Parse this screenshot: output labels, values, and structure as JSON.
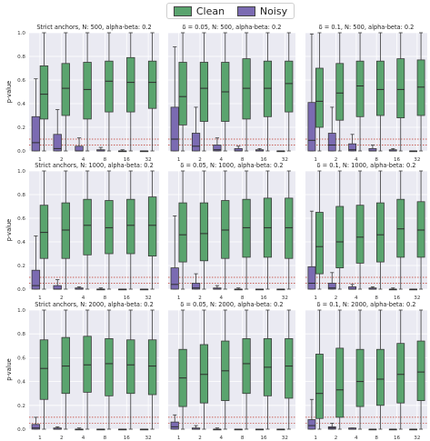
{
  "legend": {
    "clean_label": "Clean",
    "noisy_label": "Noisy"
  },
  "colors": {
    "clean": "#5aa46e",
    "noisy": "#7b6bb2",
    "background": "#eaeaf2",
    "threshold": "#c0392b",
    "median": "#2d2d2d"
  },
  "chart_data": [
    {
      "type": "box",
      "title": "Strict anchors, N: 500, alpha-beta: 0.2",
      "ylabel": "p-value",
      "categories": [
        "1",
        "2",
        "4",
        "8",
        "16",
        "32"
      ],
      "ylim": [
        0,
        1
      ],
      "threshold_lines": [
        0.05,
        0.1
      ],
      "grid": true,
      "series": [
        {
          "name": "Clean",
          "boxes": [
            [
              0.0,
              0.27,
              0.48,
              0.72,
              1.0
            ],
            [
              0.0,
              0.3,
              0.53,
              0.74,
              1.0
            ],
            [
              0.0,
              0.27,
              0.52,
              0.75,
              1.0
            ],
            [
              0.0,
              0.33,
              0.59,
              0.76,
              1.0
            ],
            [
              0.0,
              0.33,
              0.58,
              0.79,
              1.0
            ],
            [
              0.0,
              0.36,
              0.58,
              0.76,
              1.0
            ]
          ]
        },
        {
          "name": "Noisy",
          "boxes": [
            [
              0.0,
              0.0,
              0.07,
              0.29,
              0.61
            ],
            [
              0.0,
              0.0,
              0.02,
              0.14,
              0.35
            ],
            [
              0.0,
              0.0,
              0.0,
              0.04,
              0.11
            ],
            [
              0.0,
              0.0,
              0.0,
              0.01,
              0.03
            ],
            [
              0.0,
              0.0,
              0.0,
              0.0,
              0.01
            ],
            [
              0.0,
              0.0,
              0.0,
              0.0,
              0.0
            ]
          ]
        }
      ]
    },
    {
      "type": "box",
      "title": "δ = 0.05, N: 500, alpha-beta: 0.2",
      "ylabel": "",
      "categories": [
        "1",
        "2",
        "4",
        "8",
        "16",
        "32"
      ],
      "ylim": [
        0,
        1
      ],
      "threshold_lines": [
        0.05,
        0.1
      ],
      "grid": true,
      "series": [
        {
          "name": "Clean",
          "boxes": [
            [
              0.0,
              0.22,
              0.46,
              0.75,
              1.0
            ],
            [
              0.0,
              0.25,
              0.53,
              0.75,
              1.0
            ],
            [
              0.0,
              0.25,
              0.5,
              0.75,
              1.0
            ],
            [
              0.0,
              0.27,
              0.53,
              0.78,
              1.0
            ],
            [
              0.0,
              0.29,
              0.53,
              0.76,
              1.0
            ],
            [
              0.0,
              0.33,
              0.57,
              0.76,
              1.0
            ]
          ]
        },
        {
          "name": "Noisy",
          "boxes": [
            [
              0.0,
              0.0,
              0.1,
              0.37,
              0.88
            ],
            [
              0.0,
              0.0,
              0.04,
              0.15,
              0.37
            ],
            [
              0.0,
              0.0,
              0.01,
              0.05,
              0.11
            ],
            [
              0.0,
              0.0,
              0.0,
              0.02,
              0.04
            ],
            [
              0.0,
              0.0,
              0.0,
              0.01,
              0.02
            ],
            [
              0.0,
              0.0,
              0.0,
              0.0,
              0.0
            ]
          ]
        }
      ]
    },
    {
      "type": "box",
      "title": "δ = 0.1, N: 500, alpha-beta: 0.2",
      "ylabel": "",
      "categories": [
        "1",
        "2",
        "4",
        "8",
        "16",
        "32"
      ],
      "ylim": [
        0,
        1
      ],
      "threshold_lines": [
        0.05,
        0.1
      ],
      "grid": true,
      "series": [
        {
          "name": "Clean",
          "boxes": [
            [
              0.0,
              0.2,
              0.42,
              0.7,
              1.0
            ],
            [
              0.0,
              0.26,
              0.49,
              0.74,
              1.0
            ],
            [
              0.0,
              0.29,
              0.55,
              0.76,
              1.0
            ],
            [
              0.0,
              0.3,
              0.52,
              0.76,
              1.0
            ],
            [
              0.0,
              0.28,
              0.52,
              0.78,
              1.0
            ],
            [
              0.0,
              0.3,
              0.54,
              0.77,
              1.0
            ]
          ]
        },
        {
          "name": "Noisy",
          "boxes": [
            [
              0.0,
              0.0,
              0.09,
              0.41,
              0.99
            ],
            [
              0.0,
              0.0,
              0.05,
              0.15,
              0.37
            ],
            [
              0.0,
              0.0,
              0.01,
              0.06,
              0.14
            ],
            [
              0.0,
              0.0,
              0.0,
              0.02,
              0.05
            ],
            [
              0.0,
              0.0,
              0.0,
              0.01,
              0.02
            ],
            [
              0.0,
              0.0,
              0.0,
              0.0,
              0.0
            ]
          ]
        }
      ]
    },
    {
      "type": "box",
      "title": "Strict anchors, N: 1000, alpha-beta: 0.2",
      "ylabel": "p-value",
      "categories": [
        "1",
        "2",
        "4",
        "8",
        "16",
        "32"
      ],
      "ylim": [
        0,
        1
      ],
      "threshold_lines": [
        0.05,
        0.1
      ],
      "grid": true,
      "series": [
        {
          "name": "Clean",
          "boxes": [
            [
              0.0,
              0.26,
              0.48,
              0.71,
              1.0
            ],
            [
              0.0,
              0.26,
              0.5,
              0.73,
              1.0
            ],
            [
              0.0,
              0.29,
              0.54,
              0.76,
              1.0
            ],
            [
              0.0,
              0.3,
              0.52,
              0.75,
              1.0
            ],
            [
              0.0,
              0.3,
              0.54,
              0.76,
              1.0
            ],
            [
              0.0,
              0.28,
              0.54,
              0.78,
              1.0
            ]
          ]
        },
        {
          "name": "Noisy",
          "boxes": [
            [
              0.0,
              0.0,
              0.03,
              0.16,
              0.45
            ],
            [
              0.0,
              0.0,
              0.0,
              0.03,
              0.08
            ],
            [
              0.0,
              0.0,
              0.0,
              0.01,
              0.02
            ],
            [
              0.0,
              0.0,
              0.0,
              0.0,
              0.01
            ],
            [
              0.0,
              0.0,
              0.0,
              0.0,
              0.0
            ],
            [
              0.0,
              0.0,
              0.0,
              0.0,
              0.0
            ]
          ]
        }
      ]
    },
    {
      "type": "box",
      "title": "δ = 0.05, N: 1000, alpha-beta: 0.2",
      "ylabel": "",
      "categories": [
        "1",
        "2",
        "4",
        "8",
        "16",
        "32"
      ],
      "ylim": [
        0,
        1
      ],
      "threshold_lines": [
        0.05,
        0.1
      ],
      "grid": true,
      "series": [
        {
          "name": "Clean",
          "boxes": [
            [
              0.0,
              0.23,
              0.46,
              0.73,
              1.0
            ],
            [
              0.0,
              0.24,
              0.47,
              0.73,
              1.0
            ],
            [
              0.0,
              0.26,
              0.5,
              0.75,
              1.0
            ],
            [
              0.0,
              0.27,
              0.52,
              0.76,
              1.0
            ],
            [
              0.0,
              0.27,
              0.52,
              0.77,
              1.0
            ],
            [
              0.0,
              0.26,
              0.52,
              0.77,
              1.0
            ]
          ]
        },
        {
          "name": "Noisy",
          "boxes": [
            [
              0.0,
              0.0,
              0.04,
              0.18,
              0.62
            ],
            [
              0.0,
              0.0,
              0.01,
              0.05,
              0.13
            ],
            [
              0.0,
              0.0,
              0.0,
              0.01,
              0.03
            ],
            [
              0.0,
              0.0,
              0.0,
              0.0,
              0.01
            ],
            [
              0.0,
              0.0,
              0.0,
              0.0,
              0.0
            ],
            [
              0.0,
              0.0,
              0.0,
              0.0,
              0.0
            ]
          ]
        }
      ]
    },
    {
      "type": "box",
      "title": "δ = 0.1, N: 1000, alpha-beta: 0.2",
      "ylabel": "",
      "categories": [
        "1",
        "2",
        "4",
        "8",
        "16",
        "32"
      ],
      "ylim": [
        0,
        1
      ],
      "threshold_lines": [
        0.05,
        0.1
      ],
      "grid": true,
      "series": [
        {
          "name": "Clean",
          "boxes": [
            [
              0.0,
              0.13,
              0.36,
              0.65,
              1.0
            ],
            [
              0.0,
              0.18,
              0.4,
              0.7,
              1.0
            ],
            [
              0.0,
              0.22,
              0.44,
              0.71,
              1.0
            ],
            [
              0.0,
              0.23,
              0.46,
              0.73,
              1.0
            ],
            [
              0.0,
              0.27,
              0.51,
              0.76,
              1.0
            ],
            [
              0.0,
              0.27,
              0.5,
              0.74,
              1.0
            ]
          ]
        },
        {
          "name": "Noisy",
          "boxes": [
            [
              0.0,
              0.0,
              0.05,
              0.19,
              0.66
            ],
            [
              0.0,
              0.0,
              0.01,
              0.05,
              0.14
            ],
            [
              0.0,
              0.0,
              0.0,
              0.02,
              0.04
            ],
            [
              0.0,
              0.0,
              0.0,
              0.01,
              0.02
            ],
            [
              0.0,
              0.0,
              0.0,
              0.0,
              0.01
            ],
            [
              0.0,
              0.0,
              0.0,
              0.0,
              0.0
            ]
          ]
        }
      ]
    },
    {
      "type": "box",
      "title": "Strict anchors, N: 2000, alpha-beta: 0.2",
      "ylabel": "p-value",
      "categories": [
        "1",
        "2",
        "4",
        "8",
        "16",
        "32"
      ],
      "ylim": [
        0,
        1
      ],
      "threshold_lines": [
        0.05,
        0.1
      ],
      "grid": true,
      "series": [
        {
          "name": "Clean",
          "boxes": [
            [
              0.0,
              0.25,
              0.51,
              0.75,
              1.0
            ],
            [
              0.0,
              0.3,
              0.53,
              0.77,
              1.0
            ],
            [
              0.0,
              0.31,
              0.54,
              0.78,
              1.0
            ],
            [
              0.0,
              0.28,
              0.55,
              0.76,
              1.0
            ],
            [
              0.0,
              0.3,
              0.54,
              0.75,
              1.0
            ],
            [
              0.0,
              0.29,
              0.53,
              0.75,
              1.0
            ]
          ]
        },
        {
          "name": "Noisy",
          "boxes": [
            [
              0.0,
              0.0,
              0.01,
              0.04,
              0.1
            ],
            [
              0.0,
              0.0,
              0.0,
              0.01,
              0.02
            ],
            [
              0.0,
              0.0,
              0.0,
              0.0,
              0.01
            ],
            [
              0.0,
              0.0,
              0.0,
              0.0,
              0.0
            ],
            [
              0.0,
              0.0,
              0.0,
              0.0,
              0.0
            ],
            [
              0.0,
              0.0,
              0.0,
              0.0,
              0.0
            ]
          ]
        }
      ]
    },
    {
      "type": "box",
      "title": "δ = 0.05, N: 2000, alpha-beta: 0.2",
      "ylabel": "",
      "categories": [
        "1",
        "2",
        "4",
        "8",
        "16",
        "32"
      ],
      "ylim": [
        0,
        1
      ],
      "threshold_lines": [
        0.05,
        0.1
      ],
      "grid": true,
      "series": [
        {
          "name": "Clean",
          "boxes": [
            [
              0.0,
              0.19,
              0.43,
              0.67,
              1.0
            ],
            [
              0.0,
              0.22,
              0.46,
              0.71,
              1.0
            ],
            [
              0.0,
              0.24,
              0.49,
              0.74,
              1.0
            ],
            [
              0.0,
              0.3,
              0.55,
              0.76,
              1.0
            ],
            [
              0.0,
              0.28,
              0.52,
              0.76,
              1.0
            ],
            [
              0.0,
              0.26,
              0.53,
              0.76,
              1.0
            ]
          ]
        },
        {
          "name": "Noisy",
          "boxes": [
            [
              0.0,
              0.0,
              0.02,
              0.06,
              0.12
            ],
            [
              0.0,
              0.0,
              0.0,
              0.01,
              0.03
            ],
            [
              0.0,
              0.0,
              0.0,
              0.0,
              0.01
            ],
            [
              0.0,
              0.0,
              0.0,
              0.0,
              0.0
            ],
            [
              0.0,
              0.0,
              0.0,
              0.0,
              0.0
            ],
            [
              0.0,
              0.0,
              0.0,
              0.0,
              0.0
            ]
          ]
        }
      ]
    },
    {
      "type": "box",
      "title": "δ = 0.1, N: 2000, alpha-beta: 0.2",
      "ylabel": "",
      "categories": [
        "1",
        "2",
        "4",
        "8",
        "16",
        "32"
      ],
      "ylim": [
        0,
        1
      ],
      "threshold_lines": [
        0.05,
        0.1
      ],
      "grid": true,
      "series": [
        {
          "name": "Clean",
          "boxes": [
            [
              0.0,
              0.09,
              0.3,
              0.63,
              1.0
            ],
            [
              0.0,
              0.1,
              0.33,
              0.68,
              1.0
            ],
            [
              0.0,
              0.19,
              0.4,
              0.67,
              1.0
            ],
            [
              0.0,
              0.2,
              0.42,
              0.67,
              1.0
            ],
            [
              0.0,
              0.22,
              0.46,
              0.72,
              1.0
            ],
            [
              0.0,
              0.24,
              0.48,
              0.74,
              1.0
            ]
          ]
        },
        {
          "name": "Noisy",
          "boxes": [
            [
              0.0,
              0.0,
              0.03,
              0.08,
              0.25
            ],
            [
              0.0,
              0.0,
              0.01,
              0.02,
              0.05
            ],
            [
              0.0,
              0.0,
              0.0,
              0.01,
              0.01
            ],
            [
              0.0,
              0.0,
              0.0,
              0.0,
              0.0
            ],
            [
              0.0,
              0.0,
              0.0,
              0.0,
              0.0
            ],
            [
              0.0,
              0.0,
              0.0,
              0.0,
              0.0
            ]
          ]
        }
      ]
    }
  ]
}
